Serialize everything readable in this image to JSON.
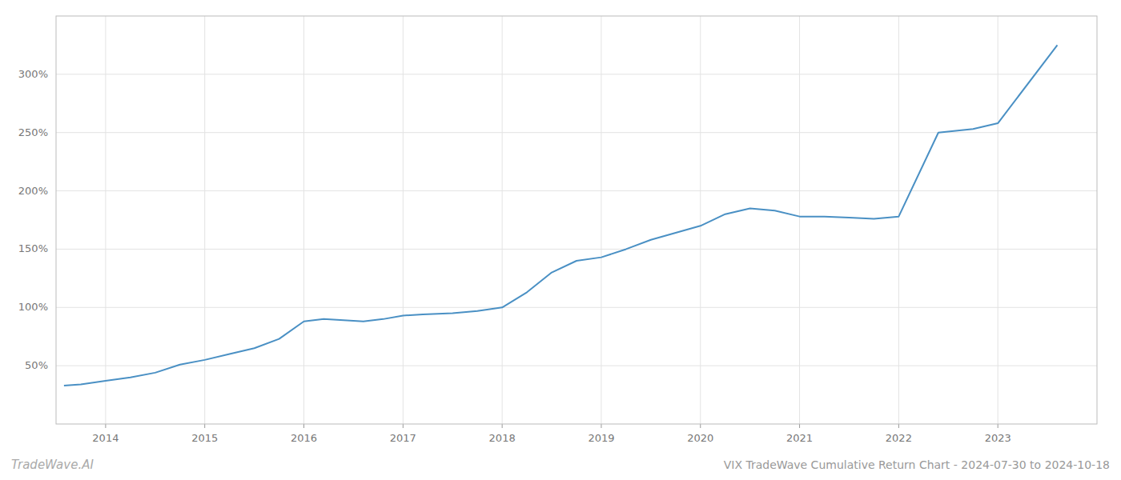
{
  "chart_data": {
    "type": "line",
    "title": "VIX TradeWave Cumulative Return Chart - 2024-07-30 to 2024-10-18",
    "annotations": [
      "TradeWave.AI"
    ],
    "x": [
      2013.58,
      2013.75,
      2014.0,
      2014.25,
      2014.5,
      2014.75,
      2015.0,
      2015.25,
      2015.5,
      2015.75,
      2016.0,
      2016.2,
      2016.4,
      2016.6,
      2016.8,
      2017.0,
      2017.2,
      2017.5,
      2017.75,
      2018.0,
      2018.25,
      2018.5,
      2018.75,
      2019.0,
      2019.25,
      2019.5,
      2019.75,
      2020.0,
      2020.25,
      2020.5,
      2020.75,
      2021.0,
      2021.25,
      2021.5,
      2021.75,
      2022.0,
      2022.4,
      2022.75,
      2023.0,
      2023.6
    ],
    "values": [
      33,
      34,
      37,
      40,
      44,
      51,
      55,
      60,
      65,
      73,
      88,
      90,
      89,
      88,
      90,
      93,
      94,
      95,
      97,
      100,
      113,
      130,
      140,
      143,
      150,
      158,
      164,
      170,
      180,
      185,
      183,
      178,
      178,
      177,
      176,
      178,
      250,
      253,
      258,
      325
    ],
    "color": "#4a90c4",
    "xlim": [
      2013.5,
      2024.0
    ],
    "ylim": [
      0,
      350
    ],
    "xticks": [
      2014,
      2015,
      2016,
      2017,
      2018,
      2019,
      2020,
      2021,
      2022,
      2023
    ],
    "yticks": [
      {
        "value": 50,
        "label": "50%"
      },
      {
        "value": 100,
        "label": "100%"
      },
      {
        "value": 150,
        "label": "150%"
      },
      {
        "value": 200,
        "label": "200%"
      },
      {
        "value": 250,
        "label": "250%"
      },
      {
        "value": 300,
        "label": "300%"
      }
    ],
    "grid": true
  }
}
